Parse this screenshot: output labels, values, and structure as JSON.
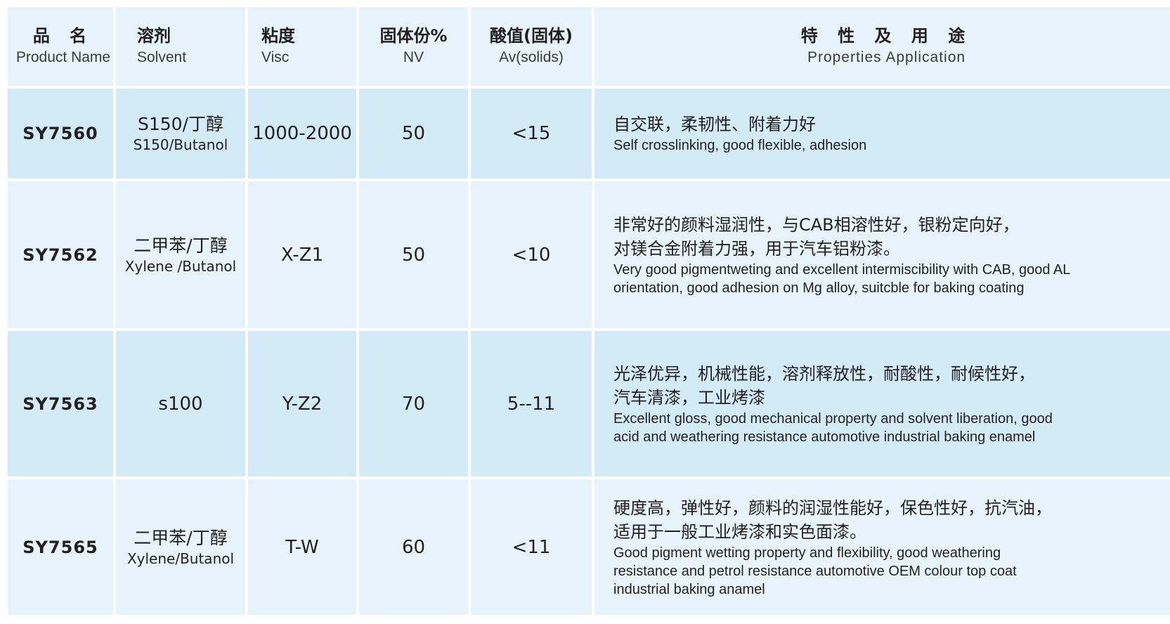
{
  "header": {
    "product_cn": "品 名",
    "product_en": "Product Name",
    "solvent_cn": "溶剂",
    "solvent_en": "Solvent",
    "visc_cn": "粘度",
    "visc_en": "Visc",
    "nv_cn": "固体份%",
    "nv_en": "NV",
    "av_cn": "酸值(固体)",
    "av_en": "Av(solids)",
    "app_cn": "特 性 及 用 途",
    "app_en": "Properties Application"
  },
  "rows": [
    {
      "code": "SY7560",
      "solvent_cn": "S150/丁醇",
      "solvent_en": "S150/Butanol",
      "visc": "1000-2000",
      "nv": "50",
      "av": "<15",
      "app_cn": [
        "自交联，柔韧性、附着力好"
      ],
      "app_en": [
        "Self crosslinking, good flexible, adhesion"
      ]
    },
    {
      "code": "SY7562",
      "solvent_cn": "二甲苯/丁醇",
      "solvent_en": "Xylene /Butanol",
      "visc": "X-Z1",
      "nv": "50",
      "av": "<10",
      "app_cn": [
        "非常好的颜料湿润性，与CAB相溶性好，银粉定向好，",
        "对镁合金附着力强，用于汽车铝粉漆。"
      ],
      "app_en": [
        "Very good pigmentweting and excellent intermiscibility with CAB, good AL",
        "orientation, good adhesion on Mg alloy, suitcble for baking coating"
      ]
    },
    {
      "code": "SY7563",
      "solvent_cn": "s100",
      "solvent_en": "",
      "visc": "Y-Z2",
      "nv": "70",
      "av": "5--11",
      "app_cn": [
        "光泽优异，机械性能，溶剂释放性，耐酸性，耐候性好，",
        "汽车清漆，工业烤漆"
      ],
      "app_en": [
        "Excellent gloss, good mechanical property and solvent liberation, good",
        "acid and weathering resistance automotive industrial baking enamel"
      ]
    },
    {
      "code": "SY7565",
      "solvent_cn": "二甲苯/丁醇",
      "solvent_en": "Xylene/Butanol",
      "visc": "T-W",
      "nv": "60",
      "av": "<11",
      "app_cn": [
        "硬度高，弹性好，颜料的润湿性能好，保色性好，抗汽油，",
        "适用于一般工业烤漆和实色面漆。"
      ],
      "app_en": [
        "Good pigment wetting property and flexibility, good weathering",
        "resistance and petrol resistance automotive OEM colour top coat",
        "industrial baking anamel"
      ]
    }
  ],
  "colors": {
    "header_bg": "#e6f3fb",
    "row_dark_bg": "#d3eaf7",
    "row_light_bg": "#e6f3fb",
    "text": "#231f20"
  }
}
